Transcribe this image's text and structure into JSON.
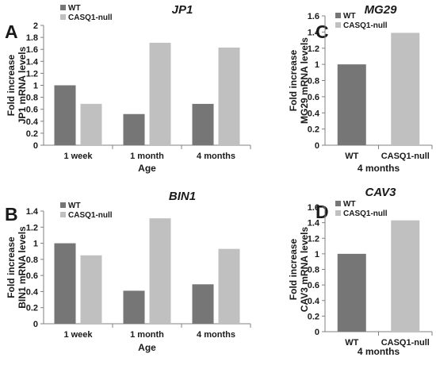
{
  "colors": {
    "WT": "#767676",
    "CASQ1-null": "#c0c0c0",
    "axis": "#808080"
  },
  "chart_data": [
    {
      "panel": "A",
      "type": "bar",
      "title": "JP1",
      "ylabel": [
        "Fold increase",
        "JP1 mRNA levels"
      ],
      "xlabel": "Age",
      "categories": [
        "1 week",
        "1 month",
        "4 months"
      ],
      "ylim": [
        0,
        2
      ],
      "yticks": [
        0,
        0.2,
        0.4,
        0.6,
        0.8,
        1,
        1.2,
        1.4,
        1.6,
        1.8,
        2
      ],
      "legend": [
        "WT",
        "CASQ1-null"
      ],
      "legend_position": "top-left",
      "series": [
        {
          "name": "WT",
          "values": [
            1.0,
            0.52,
            0.69
          ]
        },
        {
          "name": "CASQ1-null",
          "values": [
            0.69,
            1.71,
            1.63
          ]
        }
      ]
    },
    {
      "panel": "B",
      "type": "bar",
      "title": "BIN1",
      "ylabel": [
        "Fold increase",
        "BIN1 mRNA levels"
      ],
      "xlabel": "Age",
      "categories": [
        "1 week",
        "1 month",
        "4 months"
      ],
      "ylim": [
        0,
        1.4
      ],
      "yticks": [
        0,
        0.2,
        0.4,
        0.6,
        0.8,
        1,
        1.2,
        1.4
      ],
      "legend": [
        "WT",
        "CASQ1-null"
      ],
      "legend_position": "top-left",
      "series": [
        {
          "name": "WT",
          "values": [
            1.0,
            0.41,
            0.49
          ]
        },
        {
          "name": "CASQ1-null",
          "values": [
            0.85,
            1.31,
            0.93
          ]
        }
      ]
    },
    {
      "panel": "C",
      "type": "bar",
      "title": "MG29",
      "ylabel": [
        "Fold increase",
        "MG29 mRNA levels"
      ],
      "xlabel": "4 months",
      "categories": [
        "WT",
        "CASQ1-null"
      ],
      "ylim": [
        0,
        1.6
      ],
      "yticks": [
        0,
        0.2,
        0.4,
        0.6,
        0.8,
        1,
        1.2,
        1.4,
        1.6
      ],
      "legend": [
        "WT",
        "CASQ1-null"
      ],
      "legend_position": "top-left",
      "series": [
        {
          "name": "WT",
          "values": [
            1.0,
            null
          ]
        },
        {
          "name": "CASQ1-null",
          "values": [
            null,
            1.39
          ]
        }
      ]
    },
    {
      "panel": "D",
      "type": "bar",
      "title": "CAV3",
      "ylabel": [
        "Fold increase",
        "CAV3 mRNA levels"
      ],
      "xlabel": "4 months",
      "categories": [
        "WT",
        "CASQ1-null"
      ],
      "ylim": [
        0,
        1.6
      ],
      "yticks": [
        0,
        0.2,
        0.4,
        0.6,
        0.8,
        1,
        1.2,
        1.4,
        1.6
      ],
      "legend": [
        "WT",
        "CASQ1-null"
      ],
      "legend_position": "top-left",
      "series": [
        {
          "name": "WT",
          "values": [
            1.0,
            null
          ]
        },
        {
          "name": "CASQ1-null",
          "values": [
            null,
            1.43
          ]
        }
      ]
    }
  ]
}
